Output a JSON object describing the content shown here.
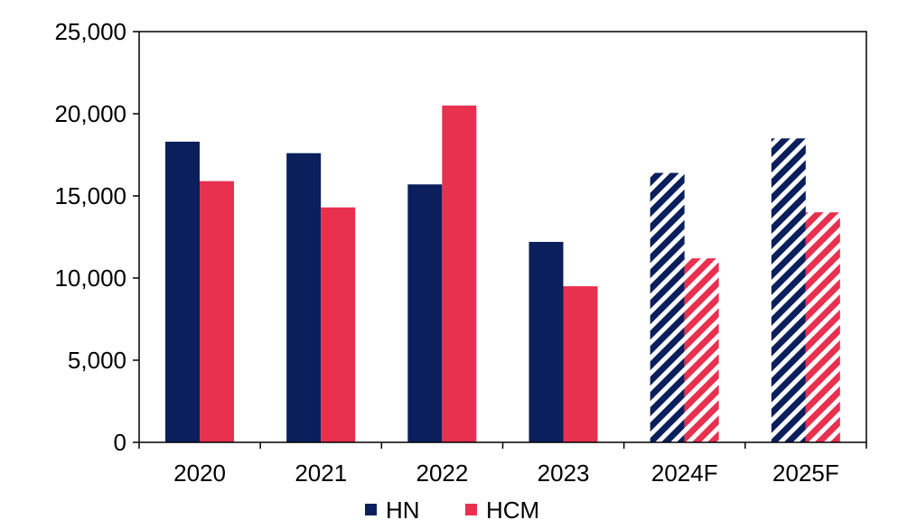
{
  "chart_data": {
    "type": "bar",
    "title": "",
    "xlabel": "",
    "ylabel": "",
    "categories": [
      "2020",
      "2021",
      "2022",
      "2023",
      "2024F",
      "2025F"
    ],
    "forecast_categories": [
      "2024F",
      "2025F"
    ],
    "forecast_style": "diagonal-hatch",
    "series": [
      {
        "name": "HN",
        "color": "#0b1f5c",
        "values": [
          18300,
          17600,
          15700,
          12200,
          16400,
          18500
        ]
      },
      {
        "name": "HCM",
        "color": "#e8304f",
        "values": [
          15900,
          14300,
          20500,
          9500,
          11200,
          14000
        ]
      }
    ],
    "ylim": [
      0,
      25000
    ],
    "yticks": [
      0,
      5000,
      10000,
      15000,
      20000,
      25000
    ],
    "ytick_labels": [
      "0",
      "5,000",
      "10,000",
      "15,000",
      "20,000",
      "25,000"
    ],
    "grid": false,
    "legend_position": "bottom"
  }
}
